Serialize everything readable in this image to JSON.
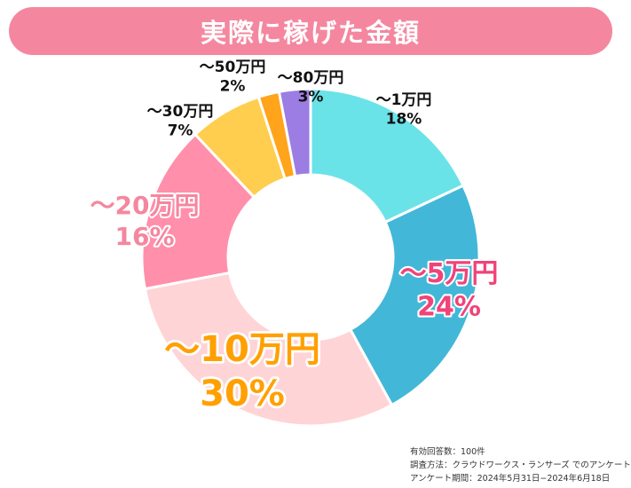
{
  "title": "実際に稼げた金額",
  "chart_data": {
    "type": "pie",
    "donut": true,
    "title": "実際に稼げた金額",
    "categories": [
      "～1万円",
      "～5万円",
      "～10万円",
      "～20万円",
      "～30万円",
      "～50万円",
      "～80万円"
    ],
    "values": [
      18,
      24,
      30,
      16,
      7,
      2,
      3
    ],
    "value_labels": [
      "18%",
      "24%",
      "30%",
      "16%",
      "7%",
      "2%",
      "3%"
    ],
    "colors": [
      "#6ae3e8",
      "#43b7d8",
      "#ffd4d6",
      "#ff8fab",
      "#ffce4f",
      "#ffa41b",
      "#9c7de3"
    ],
    "label_colors": [
      "#111111",
      "#f0437a",
      "#ffa000",
      "#f4879f",
      "#111111",
      "#111111",
      "#111111"
    ]
  },
  "footnote": {
    "line1": "有効回答数：100件",
    "line2": "調査方法：クラウドワークス・ランサーズ でのアンケート",
    "line3": "アンケート期間：2024年5月31日−2024年6月18日"
  }
}
